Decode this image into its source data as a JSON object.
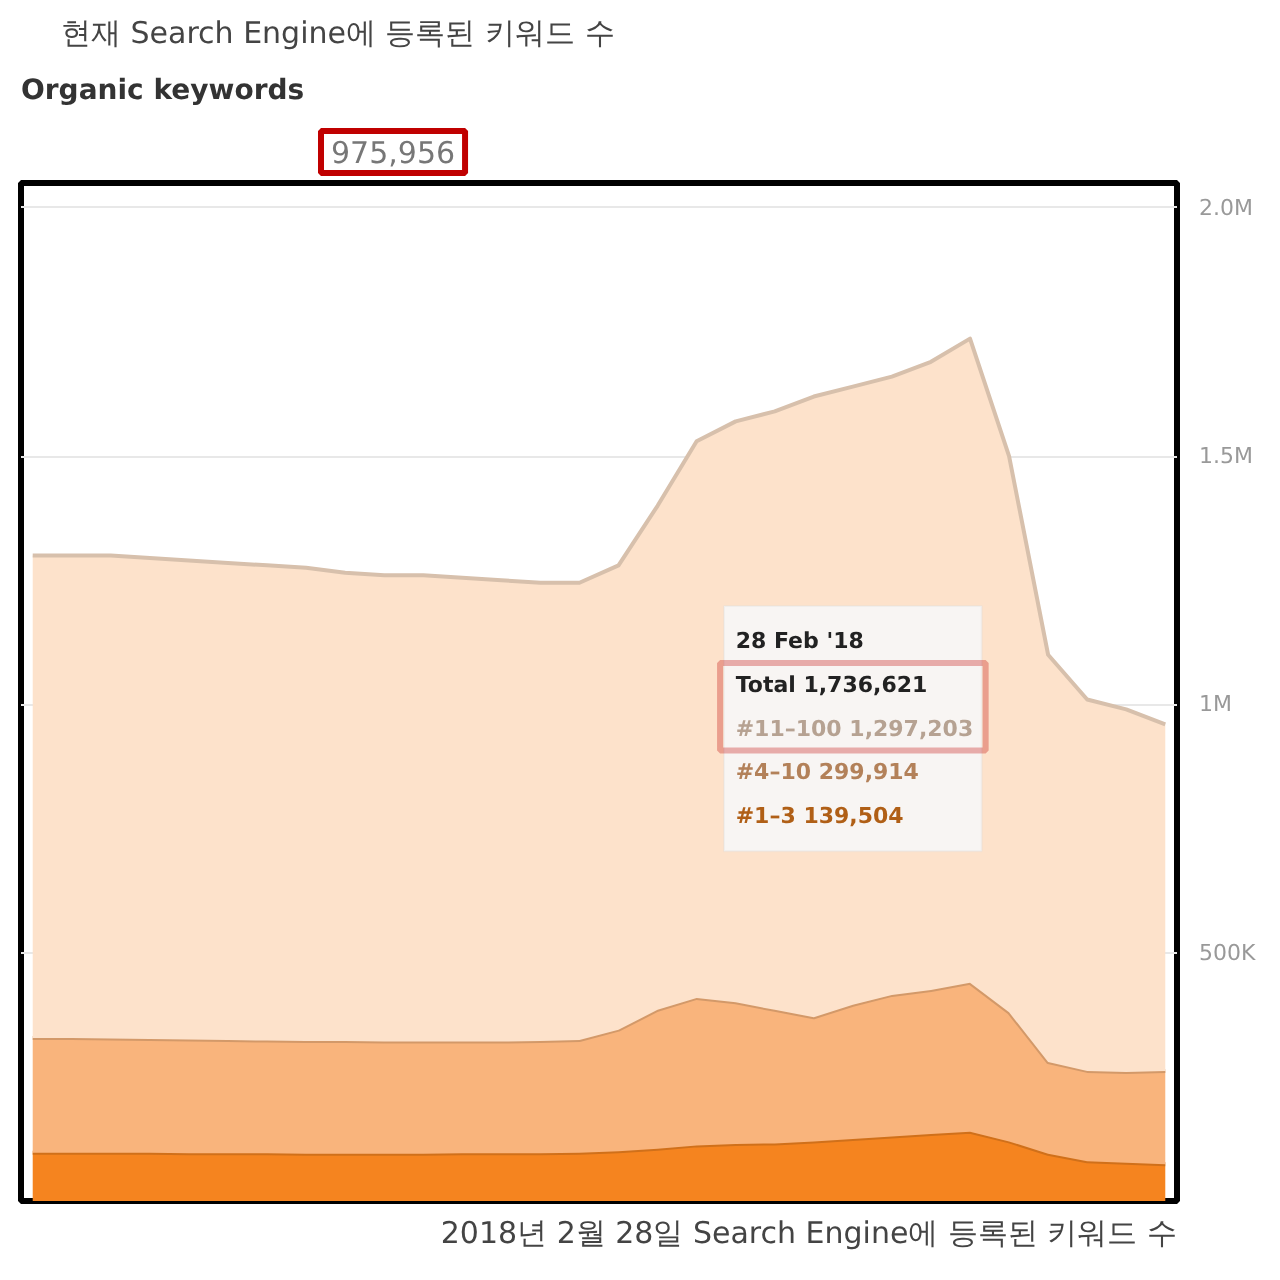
{
  "chart_data": {
    "type": "area",
    "stacked": true,
    "title": "Organic keywords",
    "subtitle": "975,956",
    "annotations": [
      "현재 Search Engine에 등록된 키워드 수",
      "28 Feb '18",
      "Total 1,736,621",
      "2018년 2월 28일 Search Engine에 등록된 키워드 수"
    ],
    "categories": [
      null,
      null,
      null,
      null,
      null,
      null,
      null,
      null,
      null,
      null,
      null,
      null,
      null,
      null,
      null,
      null,
      null,
      null,
      null,
      null,
      null,
      null,
      null,
      null,
      null,
      null,
      null,
      null,
      null,
      null
    ],
    "series": [
      {
        "name": "#1–3",
        "color": "#f5841f",
        "values": [
          97000,
          97000,
          97000,
          97000,
          96000,
          96000,
          96000,
          95000,
          95000,
          95000,
          95000,
          96000,
          96000,
          96000,
          97000,
          100000,
          105000,
          112000,
          115000,
          116000,
          120000,
          125000,
          130000,
          135000,
          139504,
          120000,
          95000,
          80000,
          77000,
          74000
        ],
        "value_labels": [
          null,
          null,
          null,
          null,
          null,
          null,
          null,
          null,
          null,
          null,
          null,
          null,
          null,
          null,
          null,
          null,
          null,
          null,
          null,
          null,
          null,
          null,
          null,
          null,
          "139,504",
          null,
          null,
          null,
          null,
          null
        ]
      },
      {
        "name": "#4–10",
        "color": "#f9b47c",
        "values": [
          231000,
          231000,
          230000,
          229000,
          229000,
          228000,
          227000,
          227000,
          227000,
          226000,
          226000,
          225000,
          225000,
          226000,
          227000,
          245000,
          280000,
          297000,
          285000,
          269000,
          250000,
          270000,
          285000,
          290000,
          299914,
          260000,
          185000,
          182000,
          183000,
          188000
        ],
        "value_labels": [
          null,
          null,
          null,
          null,
          null,
          null,
          null,
          null,
          null,
          null,
          null,
          null,
          null,
          null,
          null,
          null,
          null,
          null,
          null,
          null,
          null,
          null,
          null,
          null,
          "299,914",
          null,
          null,
          null,
          null,
          null
        ]
      },
      {
        "name": "#11–100",
        "color": "#fde2cb",
        "values": [
          972000,
          972000,
          973000,
          969000,
          965000,
          961000,
          957000,
          953000,
          943000,
          939000,
          939000,
          934000,
          929000,
          923000,
          921000,
          935000,
          1015000,
          1121000,
          1170000,
          1205000,
          1250000,
          1245000,
          1245000,
          1265000,
          1297203,
          1120000,
          820000,
          748000,
          730000,
          698000
        ],
        "value_labels": [
          null,
          null,
          null,
          null,
          null,
          null,
          null,
          null,
          null,
          null,
          null,
          null,
          null,
          null,
          null,
          null,
          null,
          null,
          null,
          null,
          null,
          null,
          null,
          null,
          "1,297,203",
          null,
          null,
          null,
          null,
          null
        ]
      }
    ],
    "ylim": [
      0,
      2050000
    ],
    "yticks": [
      {
        "value": 500000,
        "label": "500K"
      },
      {
        "value": 1000000,
        "label": "1M"
      },
      {
        "value": 1500000,
        "label": "1.5M"
      },
      {
        "value": 2000000,
        "label": "2.0M"
      }
    ],
    "grid": "y",
    "legend": false
  }
}
